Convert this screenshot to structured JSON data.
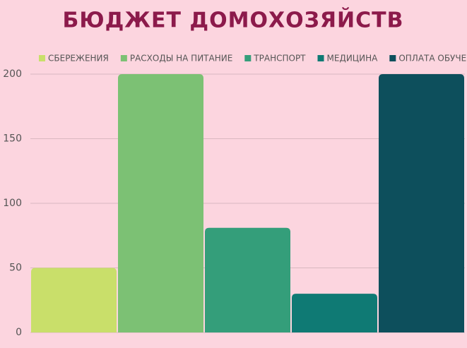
{
  "chart_data": {
    "type": "bar",
    "title": "БЮДЖЕТ ДОМОХОЗЯЙСТВ",
    "categories": [
      null
    ],
    "series": [
      {
        "name": "СБЕРЕЖЕНИЯ",
        "color": "#c9df6a",
        "values": [
          50
        ]
      },
      {
        "name": "РАСХОДЫ НА ПИТАНИЕ",
        "color": "#7cc174",
        "values": [
          200
        ]
      },
      {
        "name": "ТРАНСПОРТ",
        "color": "#349e7a",
        "values": [
          81
        ]
      },
      {
        "name": "МЕДИЦИНА",
        "color": "#0f7a74",
        "values": [
          30
        ]
      },
      {
        "name": "ОПЛАТА ОБУЧЕНИЯ",
        "color": "#0d4f5c",
        "values": [
          200
        ]
      }
    ],
    "ylim": [
      0,
      200
    ],
    "yticks": [
      0,
      50,
      100,
      150,
      200
    ],
    "grid": true
  }
}
